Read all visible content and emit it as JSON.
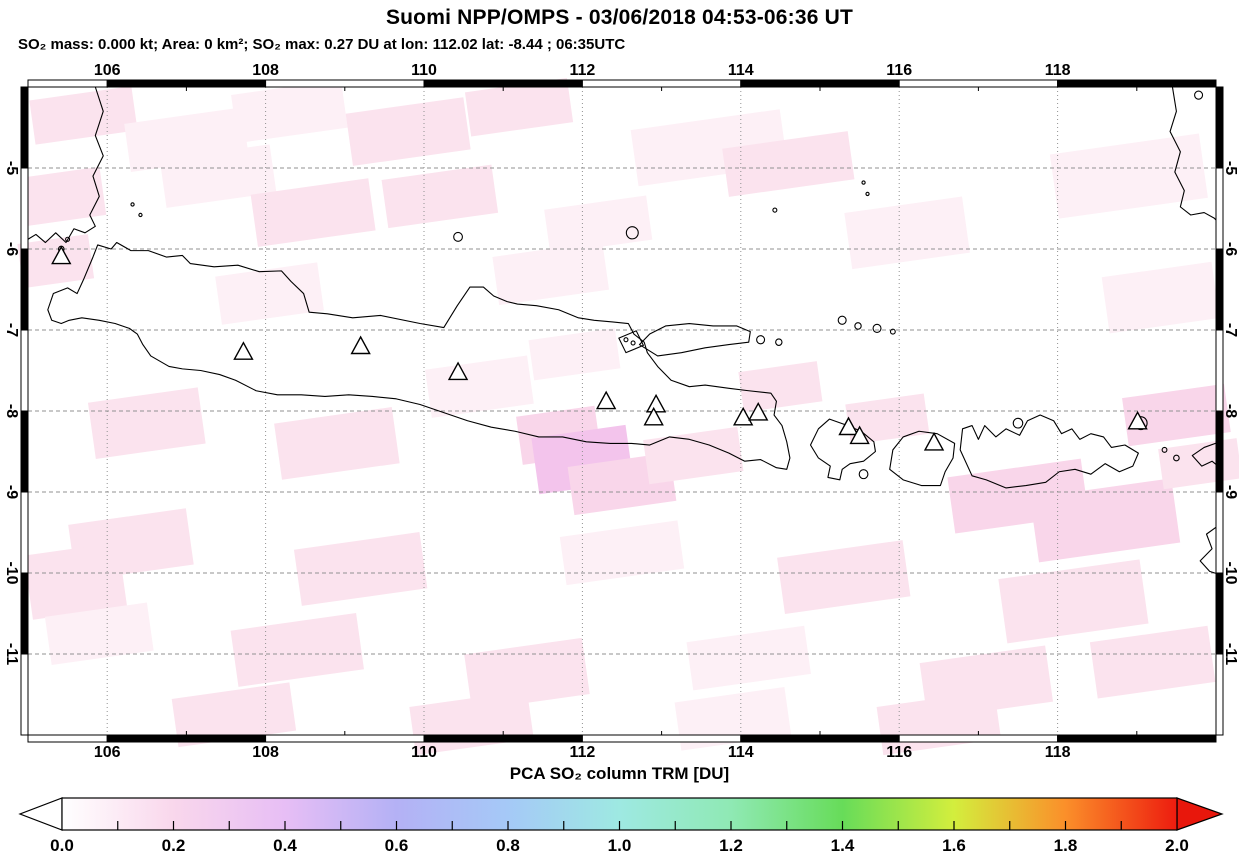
{
  "header": {
    "title": "Suomi NPP/OMPS - 03/06/2018 04:53-06:36 UT",
    "subtitle": "SO₂ mass: 0.000 kt; Area: 0 km²; SO₂ max: 0.27 DU at lon: 112.02 lat: -8.44 ; 06:35UTC"
  },
  "measurements": {
    "so2_mass_kt": "0.000",
    "area_km2": "0",
    "so2_max_du": "0.27",
    "max_lon": "112.02",
    "max_lat": "-8.44",
    "max_time": "06:35UTC"
  },
  "map": {
    "lon_range": [
      105,
      120
    ],
    "lat_range": [
      -4,
      -12
    ],
    "lon_ticks": [
      106,
      108,
      110,
      112,
      114,
      116,
      118
    ],
    "lat_ticks": [
      -5,
      -6,
      -7,
      -8,
      -9,
      -10,
      -11
    ],
    "gridline_color": "#919191",
    "coast_color": "#000000",
    "volcano_markers": [
      {
        "lon": 105.42,
        "lat": -6.1
      },
      {
        "lon": 107.72,
        "lat": -7.28
      },
      {
        "lon": 109.2,
        "lat": -7.21
      },
      {
        "lon": 110.43,
        "lat": -7.53
      },
      {
        "lon": 112.3,
        "lat": -7.89
      },
      {
        "lon": 112.93,
        "lat": -7.93
      },
      {
        "lon": 112.9,
        "lat": -8.09
      },
      {
        "lon": 114.03,
        "lat": -8.09
      },
      {
        "lon": 114.22,
        "lat": -8.03
      },
      {
        "lon": 115.36,
        "lat": -8.21
      },
      {
        "lon": 115.5,
        "lat": -8.32
      },
      {
        "lon": 116.44,
        "lat": -8.4
      },
      {
        "lon": 119.01,
        "lat": -8.14
      }
    ],
    "so2_patches": [
      {
        "lon": 105.7,
        "lat": -4.35,
        "w": 1.3,
        "h": 0.55,
        "c": "#fbe3ee"
      },
      {
        "lon": 107.0,
        "lat": -4.65,
        "w": 1.5,
        "h": 0.6,
        "c": "#fdf0f6"
      },
      {
        "lon": 108.3,
        "lat": -4.3,
        "w": 1.4,
        "h": 0.6,
        "c": "#fdf0f6"
      },
      {
        "lon": 109.8,
        "lat": -4.55,
        "w": 1.5,
        "h": 0.65,
        "c": "#fbe3ee"
      },
      {
        "lon": 111.2,
        "lat": -4.25,
        "w": 1.3,
        "h": 0.55,
        "c": "#fbe3ee"
      },
      {
        "lon": 113.6,
        "lat": -4.75,
        "w": 1.9,
        "h": 0.7,
        "c": "#fdf0f6"
      },
      {
        "lon": 114.6,
        "lat": -4.95,
        "w": 1.6,
        "h": 0.6,
        "c": "#fbe3ee"
      },
      {
        "lon": 118.9,
        "lat": -5.1,
        "w": 1.9,
        "h": 0.8,
        "c": "#fdf0f6"
      },
      {
        "lon": 105.45,
        "lat": -5.35,
        "w": 1.0,
        "h": 0.6,
        "c": "#fbe3ee"
      },
      {
        "lon": 107.4,
        "lat": -5.1,
        "w": 1.4,
        "h": 0.6,
        "c": "#fdf0f6"
      },
      {
        "lon": 108.6,
        "lat": -5.55,
        "w": 1.5,
        "h": 0.65,
        "c": "#fbe3ee"
      },
      {
        "lon": 110.2,
        "lat": -5.35,
        "w": 1.4,
        "h": 0.6,
        "c": "#fbe3ee"
      },
      {
        "lon": 112.2,
        "lat": -5.7,
        "w": 1.3,
        "h": 0.55,
        "c": "#fdf0f6"
      },
      {
        "lon": 116.1,
        "lat": -5.8,
        "w": 1.5,
        "h": 0.7,
        "c": "#fdf0f6"
      },
      {
        "lon": 105.35,
        "lat": -6.15,
        "w": 0.9,
        "h": 0.55,
        "c": "#fbe3ee"
      },
      {
        "lon": 108.05,
        "lat": -6.55,
        "w": 1.3,
        "h": 0.6,
        "c": "#fdf0f6"
      },
      {
        "lon": 111.6,
        "lat": -6.3,
        "w": 1.4,
        "h": 0.6,
        "c": "#fdf0f6"
      },
      {
        "lon": 119.3,
        "lat": -6.6,
        "w": 1.4,
        "h": 0.7,
        "c": "#fdf0f6"
      },
      {
        "lon": 111.9,
        "lat": -7.3,
        "w": 1.1,
        "h": 0.5,
        "c": "#fdf0f6"
      },
      {
        "lon": 106.5,
        "lat": -8.15,
        "w": 1.4,
        "h": 0.7,
        "c": "#fbe3ee"
      },
      {
        "lon": 108.9,
        "lat": -8.4,
        "w": 1.5,
        "h": 0.7,
        "c": "#fbe3ee"
      },
      {
        "lon": 110.7,
        "lat": -7.7,
        "w": 1.3,
        "h": 0.6,
        "c": "#fdf0f6"
      },
      {
        "lon": 111.7,
        "lat": -8.3,
        "w": 1.0,
        "h": 0.6,
        "c": "#f9d6ea"
      },
      {
        "lon": 112.0,
        "lat": -8.6,
        "w": 1.2,
        "h": 0.7,
        "c": "#f3c4ec"
      },
      {
        "lon": 112.5,
        "lat": -8.9,
        "w": 1.3,
        "h": 0.6,
        "c": "#f9d6ea"
      },
      {
        "lon": 114.5,
        "lat": -7.7,
        "w": 1.0,
        "h": 0.5,
        "c": "#fbe3ee"
      },
      {
        "lon": 113.4,
        "lat": -8.55,
        "w": 1.2,
        "h": 0.55,
        "c": "#fbe3ee"
      },
      {
        "lon": 115.85,
        "lat": -8.1,
        "w": 1.0,
        "h": 0.5,
        "c": "#fbe3ee"
      },
      {
        "lon": 117.5,
        "lat": -9.05,
        "w": 1.7,
        "h": 0.7,
        "c": "#f9d6ea"
      },
      {
        "lon": 118.6,
        "lat": -9.35,
        "w": 1.8,
        "h": 0.8,
        "c": "#f9d6ea"
      },
      {
        "lon": 119.5,
        "lat": -8.05,
        "w": 1.3,
        "h": 0.6,
        "c": "#f9d6ea"
      },
      {
        "lon": 119.8,
        "lat": -8.65,
        "w": 1.0,
        "h": 0.5,
        "c": "#fbe3ee"
      },
      {
        "lon": 106.3,
        "lat": -9.65,
        "w": 1.5,
        "h": 0.7,
        "c": "#fbe3ee"
      },
      {
        "lon": 105.6,
        "lat": -10.1,
        "w": 1.2,
        "h": 0.8,
        "c": "#fbe3ee"
      },
      {
        "lon": 109.2,
        "lat": -9.95,
        "w": 1.6,
        "h": 0.7,
        "c": "#fbe3ee"
      },
      {
        "lon": 112.5,
        "lat": -9.75,
        "w": 1.5,
        "h": 0.6,
        "c": "#fdf0f6"
      },
      {
        "lon": 115.3,
        "lat": -10.05,
        "w": 1.6,
        "h": 0.7,
        "c": "#fbe3ee"
      },
      {
        "lon": 118.2,
        "lat": -10.35,
        "w": 1.8,
        "h": 0.8,
        "c": "#fbe3ee"
      },
      {
        "lon": 105.9,
        "lat": -10.75,
        "w": 1.3,
        "h": 0.6,
        "c": "#fdf0f6"
      },
      {
        "lon": 108.4,
        "lat": -10.95,
        "w": 1.6,
        "h": 0.7,
        "c": "#fbe3ee"
      },
      {
        "lon": 111.3,
        "lat": -11.25,
        "w": 1.5,
        "h": 0.7,
        "c": "#fbe3ee"
      },
      {
        "lon": 114.1,
        "lat": -11.05,
        "w": 1.5,
        "h": 0.6,
        "c": "#fdf0f6"
      },
      {
        "lon": 117.1,
        "lat": -11.35,
        "w": 1.6,
        "h": 0.7,
        "c": "#fbe3ee"
      },
      {
        "lon": 119.2,
        "lat": -11.1,
        "w": 1.5,
        "h": 0.7,
        "c": "#fbe3ee"
      },
      {
        "lon": 107.6,
        "lat": -11.75,
        "w": 1.5,
        "h": 0.6,
        "c": "#fbe3ee"
      },
      {
        "lon": 110.6,
        "lat": -11.85,
        "w": 1.5,
        "h": 0.6,
        "c": "#fbe3ee"
      },
      {
        "lon": 113.9,
        "lat": -11.8,
        "w": 1.4,
        "h": 0.6,
        "c": "#fdf0f6"
      },
      {
        "lon": 116.5,
        "lat": -11.85,
        "w": 1.5,
        "h": 0.6,
        "c": "#fbe3ee"
      }
    ]
  },
  "colorbar": {
    "title": "PCA SO₂ column TRM [DU]",
    "range": [
      0.0,
      2.0
    ],
    "tick_labels": [
      "0.0",
      "0.2",
      "0.4",
      "0.6",
      "0.8",
      "1.0",
      "1.2",
      "1.4",
      "1.6",
      "1.8",
      "2.0"
    ],
    "minor_tick_step": 0.1,
    "gradient_stops": [
      {
        "v": 0.0,
        "c": "#ffffff"
      },
      {
        "v": 0.2,
        "c": "#f9d7ec"
      },
      {
        "v": 0.4,
        "c": "#e7bef5"
      },
      {
        "v": 0.6,
        "c": "#b4b1f5"
      },
      {
        "v": 0.8,
        "c": "#a5c9f7"
      },
      {
        "v": 1.0,
        "c": "#9ee9e2"
      },
      {
        "v": 1.2,
        "c": "#8fe9b4"
      },
      {
        "v": 1.4,
        "c": "#67dc59"
      },
      {
        "v": 1.6,
        "c": "#d3ee3d"
      },
      {
        "v": 1.8,
        "c": "#fb8f2a"
      },
      {
        "v": 2.0,
        "c": "#ed1c0f"
      }
    ],
    "arrow_left_color": "#ffffff",
    "arrow_right_color": "#e8170c"
  }
}
